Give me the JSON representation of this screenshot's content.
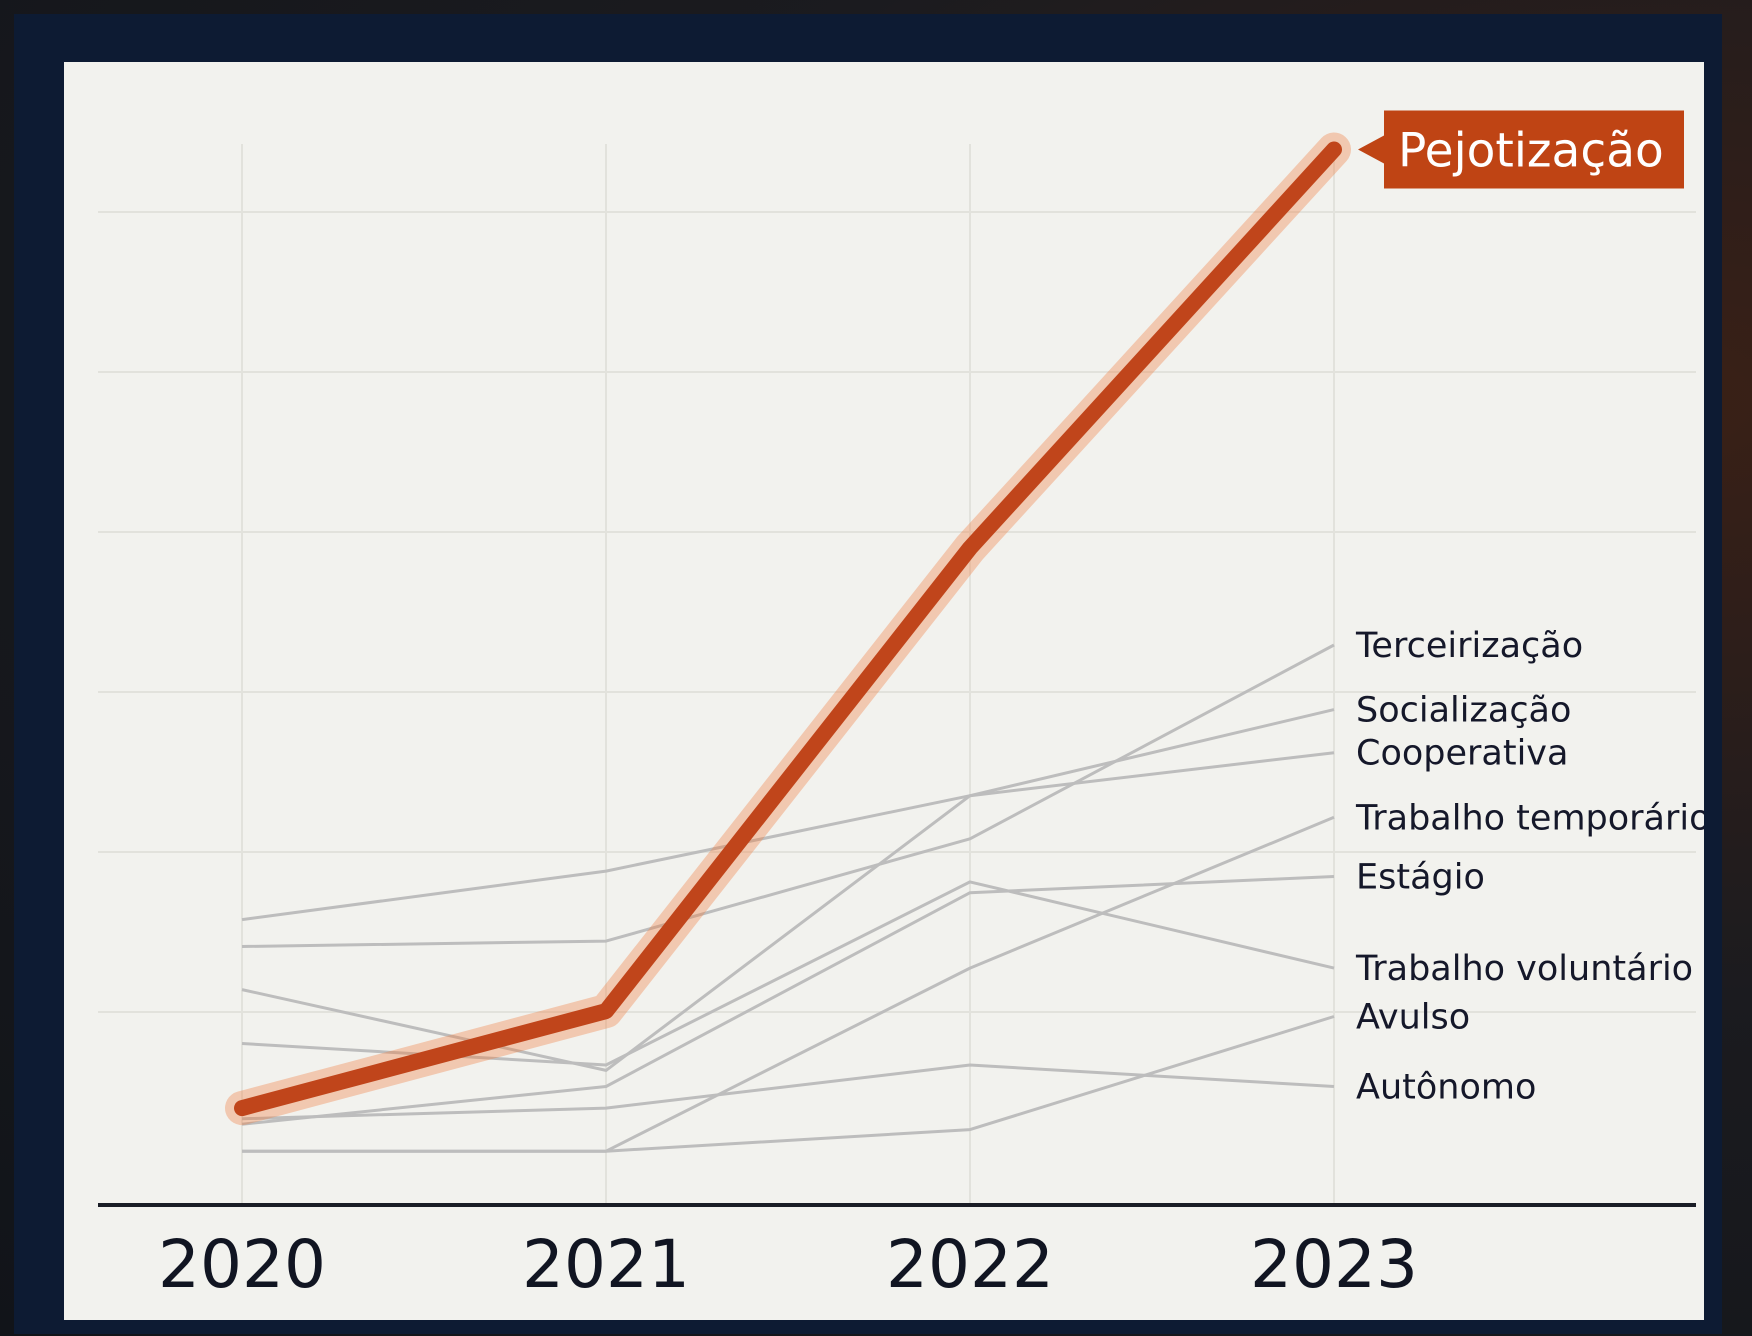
{
  "chart_data": {
    "type": "line",
    "x": [
      "2020",
      "2021",
      "2022",
      "2023"
    ],
    "ylim": [
      0,
      100
    ],
    "grid": true,
    "colors": {
      "highlight": "#c0451b",
      "others": "#bdbdbd",
      "frame": "#0d1b33",
      "panel": "#f2f2ee"
    },
    "highlight": {
      "name": "Pejotização",
      "values": [
        9,
        18,
        61,
        98
      ]
    },
    "series": [
      {
        "name": "Terceirização",
        "values": [
          24,
          24.5,
          34,
          52
        ]
      },
      {
        "name": "Socialização",
        "values": [
          26.5,
          31,
          38,
          46
        ]
      },
      {
        "name": "Cooperativa",
        "values": [
          20,
          12.5,
          38,
          42
        ]
      },
      {
        "name": "Trabalho temporário",
        "values": [
          5,
          5,
          22,
          36
        ]
      },
      {
        "name": "Estágio",
        "values": [
          7.5,
          11,
          29,
          30.5
        ]
      },
      {
        "name": "Trabalho voluntário",
        "values": [
          15,
          13,
          30,
          22
        ]
      },
      {
        "name": "Avulso",
        "values": [
          5,
          5,
          7,
          17.5
        ]
      },
      {
        "name": "Autônomo",
        "values": [
          8,
          9,
          13,
          11
        ]
      }
    ]
  }
}
